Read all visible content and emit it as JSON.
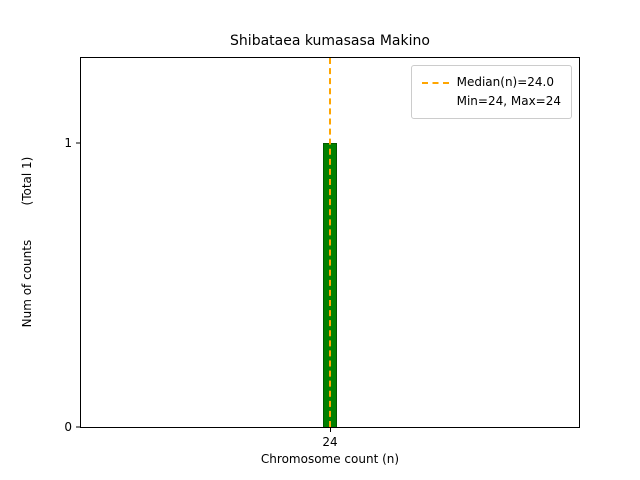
{
  "chart_data": {
    "type": "bar",
    "title": "Shibataea kumasasa Makino",
    "xlabel": "Chromosome count (n)",
    "ylabel": "Num of counts",
    "ylabel_note": "(Total 1)",
    "ylabel_display": "Num of counts         (Total 1)",
    "categories": [
      24
    ],
    "values": [
      1
    ],
    "total": 1,
    "median": 24.0,
    "min": 24,
    "max": 24,
    "xlim": [
      23.4,
      24.6
    ],
    "ylim": [
      0,
      1.3
    ],
    "bar_width": 0.034,
    "xtick_labels": [
      "24"
    ],
    "ytick_labels": [
      "0",
      "1"
    ],
    "ytick_values": [
      0,
      1
    ],
    "legend": [
      "Median(n)=24.0",
      "Min=24, Max=24"
    ],
    "grid": false,
    "legend_position": "upper right",
    "bar_color": "#008000",
    "bar_edge_color": "#005a00",
    "median_line_color": "#ffa500"
  }
}
